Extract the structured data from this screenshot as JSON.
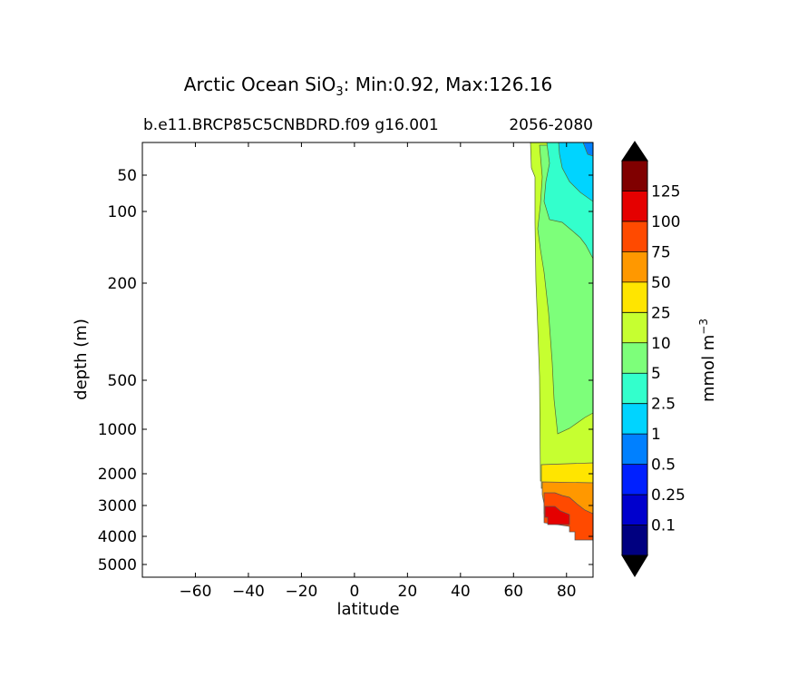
{
  "chart_data": {
    "type": "contour",
    "title": {
      "prefix": "Arctic Ocean SiO",
      "subscript": "3",
      "suffix": ": Min:0.92, Max:126.16"
    },
    "subtitle_left": "b.e11.BRCP85C5CNBDRD.f09 g16.001",
    "subtitle_right": "2056-2080",
    "xlabel": "latitude",
    "ylabel": "depth (m)",
    "xlim": [
      -80,
      90
    ],
    "x_ticks": [
      -60,
      -40,
      -20,
      0,
      20,
      40,
      60,
      80
    ],
    "x_tick_labels": [
      "−60",
      "−40",
      "−20",
      "0",
      "20",
      "40",
      "60",
      "80"
    ],
    "y_ticks": [
      50,
      100,
      200,
      500,
      1000,
      2000,
      3000,
      4000,
      5000
    ],
    "y_tick_labels": [
      "50",
      "100",
      "200",
      "500",
      "1000",
      "2000",
      "3000",
      "4000",
      "5000"
    ],
    "ylim": [
      10,
      5500
    ],
    "y_axis_inverted": true,
    "colorbar": {
      "label_base": "mmol m",
      "label_exponent": "−3",
      "extend": "both",
      "levels": [
        0.1,
        0.25,
        0.5,
        1,
        2.5,
        5,
        10,
        25,
        50,
        75,
        100,
        125
      ],
      "level_labels": [
        "0.1",
        "0.25",
        "0.5",
        "1",
        "2.5",
        "5",
        "10",
        "25",
        "50",
        "75",
        "100",
        "125"
      ],
      "colors": [
        "#000080",
        "#0000cd",
        "#0020ff",
        "#0080ff",
        "#00d4ff",
        "#33ffcc",
        "#7dff7a",
        "#c6ff30",
        "#ffe500",
        "#ff9800",
        "#ff4a00",
        "#e50000",
        "#800000"
      ]
    },
    "regions": [
      {
        "band": 7,
        "lat_range": [
          68,
          90
        ],
        "depth_range": [
          10,
          2300
        ],
        "label": "10-25"
      },
      {
        "band": 6,
        "lat_range": [
          70,
          90
        ],
        "depth_range": [
          20,
          1200
        ],
        "label": "5-10"
      },
      {
        "band": 5,
        "lat_range": [
          70,
          90
        ],
        "depth_range": [
          10,
          160
        ],
        "label": "2.5-5"
      },
      {
        "band": 4,
        "lat_range": [
          80,
          90
        ],
        "depth_range": [
          10,
          60
        ],
        "label": "1-2.5"
      },
      {
        "band": 3,
        "lat_range": [
          87,
          90
        ],
        "depth_range": [
          10,
          18
        ],
        "label": "0.5-1"
      },
      {
        "band": 8,
        "lat_range": [
          71,
          90
        ],
        "depth_range": [
          1750,
          2600
        ],
        "label": "25-50"
      },
      {
        "band": 9,
        "lat_range": [
          71,
          90
        ],
        "depth_range": [
          2300,
          3100
        ],
        "label": "50-75"
      },
      {
        "band": 10,
        "lat_range": [
          71,
          90
        ],
        "depth_range": [
          2700,
          4200
        ],
        "label": "75-100"
      },
      {
        "band": 11,
        "lat_range": [
          72,
          80
        ],
        "depth_range": [
          3200,
          4000
        ],
        "label": "100-125"
      }
    ]
  }
}
